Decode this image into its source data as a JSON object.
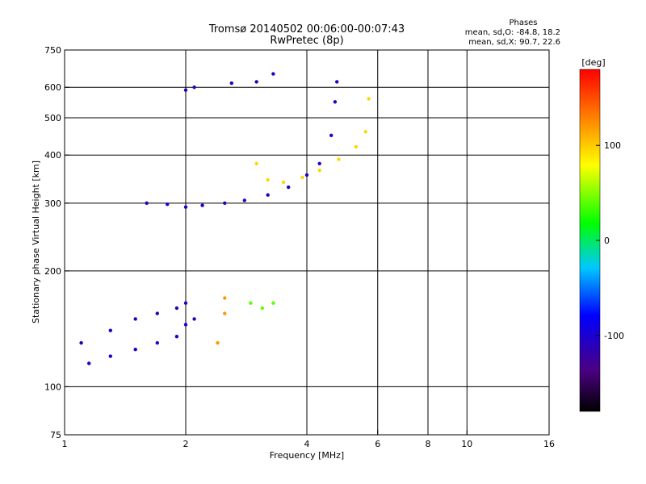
{
  "chart_data": {
    "type": "scatter",
    "title": "Tromsø 20140502 00:06:00-00:07:43",
    "subtitle": "RwPretec (8p)",
    "xlabel": "Frequency [MHz]",
    "ylabel": "Stationary phase Virtual Height [km]",
    "x_scale": "log",
    "y_scale": "log",
    "xlim": [
      1,
      16
    ],
    "ylim": [
      75,
      750
    ],
    "x_ticks": [
      1,
      2,
      4,
      6,
      8,
      10,
      16
    ],
    "x_tick_labels": [
      "1",
      "2",
      "4",
      "6",
      "8",
      "10",
      "16"
    ],
    "y_ticks": [
      75,
      100,
      200,
      300,
      400,
      500,
      600,
      750
    ],
    "y_tick_labels": [
      "75",
      "100",
      "200",
      "300",
      "400",
      "500",
      "600",
      "750"
    ],
    "x_gridlines": [
      2,
      4,
      6,
      8,
      10
    ],
    "y_gridlines": [
      100,
      200,
      300,
      400,
      500,
      600
    ],
    "legend_text": {
      "heading": "Phases",
      "line1": "mean, sd,O: -84.8, 18.2",
      "line2": "mean, sd,X:  90.7, 22.6"
    },
    "colorbar": {
      "label": "[deg]",
      "range": [
        -180,
        180
      ],
      "ticks": [
        100,
        0,
        -100
      ],
      "tick_labels": [
        "100",
        "0",
        "-100"
      ]
    },
    "traces": [
      {
        "phase": -100,
        "points": [
          [
            1.15,
            115
          ],
          [
            1.3,
            120
          ],
          [
            1.5,
            125
          ],
          [
            1.7,
            130
          ],
          [
            1.9,
            135
          ],
          [
            2.0,
            145
          ]
        ]
      },
      {
        "phase": -110,
        "points": [
          [
            1.1,
            130
          ],
          [
            1.3,
            140
          ],
          [
            1.5,
            150
          ],
          [
            1.7,
            155
          ],
          [
            1.9,
            160
          ],
          [
            2.0,
            165
          ],
          [
            2.1,
            150
          ]
        ]
      },
      {
        "phase": -105,
        "points": [
          [
            1.6,
            300
          ],
          [
            1.8,
            298
          ],
          [
            2.0,
            293
          ],
          [
            2.2,
            296
          ],
          [
            2.5,
            300
          ],
          [
            2.8,
            305
          ],
          [
            3.2,
            315
          ],
          [
            3.6,
            330
          ],
          [
            4.0,
            355
          ],
          [
            4.3,
            380
          ],
          [
            4.6,
            450
          ],
          [
            4.7,
            550
          ],
          [
            4.75,
            620
          ]
        ]
      },
      {
        "phase": 95,
        "points": [
          [
            3.0,
            380
          ],
          [
            3.2,
            345
          ],
          [
            3.5,
            340
          ],
          [
            3.9,
            350
          ],
          [
            4.3,
            365
          ],
          [
            4.8,
            390
          ],
          [
            5.3,
            420
          ],
          [
            5.6,
            460
          ],
          [
            5.7,
            560
          ]
        ]
      },
      {
        "phase": 120,
        "points": [
          [
            2.4,
            130
          ],
          [
            2.5,
            155
          ],
          [
            2.5,
            170
          ]
        ]
      },
      {
        "phase": 40,
        "points": [
          [
            2.9,
            165
          ],
          [
            3.1,
            160
          ],
          [
            3.3,
            165
          ]
        ]
      },
      {
        "phase": -110,
        "points": [
          [
            2.0,
            590
          ],
          [
            2.1,
            600
          ],
          [
            2.6,
            615
          ],
          [
            3.0,
            620
          ],
          [
            3.3,
            650
          ]
        ]
      }
    ]
  }
}
